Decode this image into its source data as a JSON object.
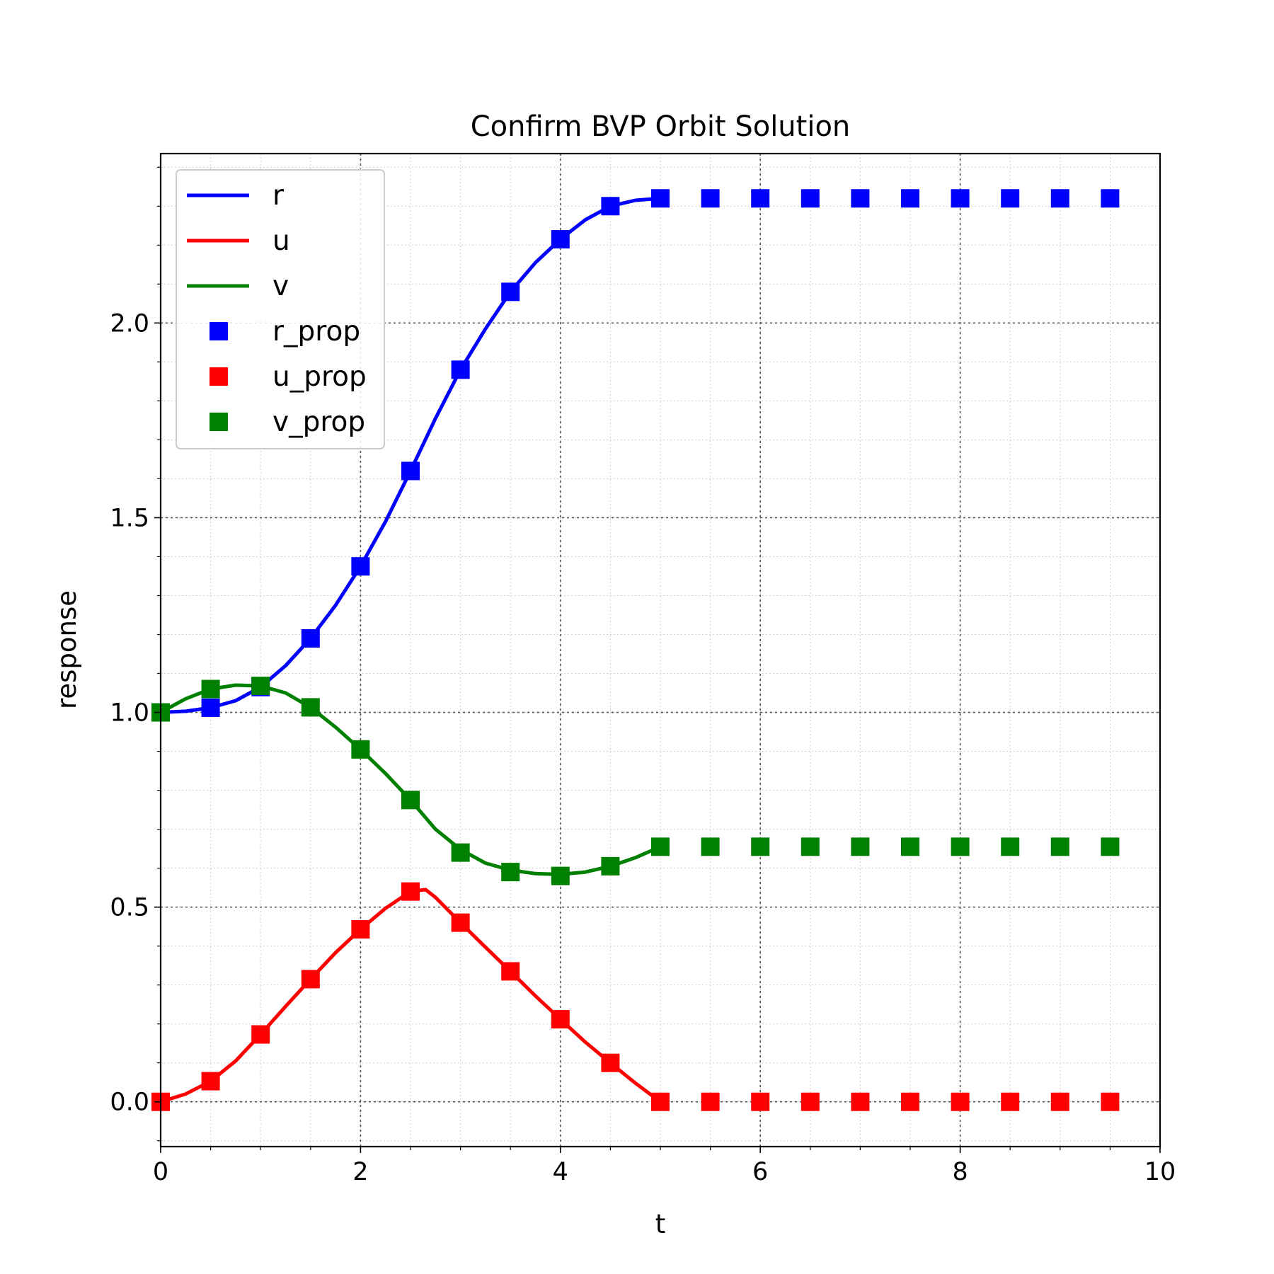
{
  "chart_data": {
    "type": "line",
    "title": "Confirm BVP Orbit Solution",
    "xlabel": "t",
    "ylabel": "response",
    "xlim": [
      0,
      10
    ],
    "ylim": [
      -0.115,
      2.435
    ],
    "xticks": [
      0,
      2,
      4,
      6,
      8,
      10
    ],
    "xtick_labels": [
      "0",
      "2",
      "4",
      "6",
      "8",
      "10"
    ],
    "yticks": [
      0.0,
      0.5,
      1.0,
      1.5,
      2.0
    ],
    "ytick_labels": [
      "0.0",
      "0.5",
      "1.0",
      "1.5",
      "2.0"
    ],
    "grid": true,
    "legend_position": "upper-left",
    "series": [
      {
        "name": "r",
        "kind": "line",
        "color": "#0000ff",
        "x": [
          0,
          0.25,
          0.5,
          0.75,
          1.0,
          1.25,
          1.5,
          1.75,
          2.0,
          2.25,
          2.5,
          2.75,
          3.0,
          3.25,
          3.5,
          3.75,
          4.0,
          4.25,
          4.5,
          4.75,
          5.0
        ],
        "y": [
          1.0,
          1.003,
          1.012,
          1.03,
          1.065,
          1.12,
          1.19,
          1.275,
          1.375,
          1.49,
          1.62,
          1.755,
          1.88,
          1.985,
          2.08,
          2.155,
          2.215,
          2.265,
          2.3,
          2.315,
          2.32
        ]
      },
      {
        "name": "u",
        "kind": "line",
        "color": "#ff0000",
        "x": [
          0,
          0.25,
          0.5,
          0.75,
          1.0,
          1.25,
          1.5,
          1.75,
          2.0,
          2.25,
          2.5,
          2.65,
          2.75,
          3.0,
          3.25,
          3.5,
          3.75,
          4.0,
          4.25,
          4.5,
          4.75,
          5.0
        ],
        "y": [
          0.0,
          0.02,
          0.053,
          0.105,
          0.173,
          0.245,
          0.315,
          0.383,
          0.443,
          0.497,
          0.54,
          0.545,
          0.525,
          0.46,
          0.397,
          0.335,
          0.272,
          0.212,
          0.153,
          0.1,
          0.048,
          0.0
        ]
      },
      {
        "name": "v",
        "kind": "line",
        "color": "#008000",
        "x": [
          0,
          0.25,
          0.5,
          0.75,
          1.0,
          1.25,
          1.5,
          1.75,
          2.0,
          2.25,
          2.5,
          2.65,
          2.75,
          3.0,
          3.25,
          3.5,
          3.75,
          4.0,
          4.25,
          4.5,
          4.75,
          5.0
        ],
        "y": [
          1.0,
          1.035,
          1.06,
          1.07,
          1.068,
          1.05,
          1.013,
          0.962,
          0.905,
          0.843,
          0.775,
          0.73,
          0.7,
          0.648,
          0.613,
          0.595,
          0.586,
          0.584,
          0.59,
          0.605,
          0.627,
          0.655
        ]
      },
      {
        "name": "r_prop",
        "kind": "markers",
        "color": "#0000ff",
        "x": [
          0.5,
          1.0,
          1.5,
          2.0,
          2.5,
          3.0,
          3.5,
          4.0,
          4.5,
          5.0,
          5.5,
          6.0,
          6.5,
          7.0,
          7.5,
          8.0,
          8.5,
          9.0,
          9.5
        ],
        "y": [
          1.012,
          1.065,
          1.19,
          1.375,
          1.62,
          1.88,
          2.08,
          2.215,
          2.3,
          2.32,
          2.32,
          2.32,
          2.32,
          2.32,
          2.32,
          2.32,
          2.32,
          2.32,
          2.32
        ]
      },
      {
        "name": "u_prop",
        "kind": "markers",
        "color": "#ff0000",
        "x": [
          0,
          0.5,
          1.0,
          1.5,
          2.0,
          2.5,
          3.0,
          3.5,
          4.0,
          4.5,
          5.0,
          5.5,
          6.0,
          6.5,
          7.0,
          7.5,
          8.0,
          8.5,
          9.0,
          9.5
        ],
        "y": [
          0.0,
          0.053,
          0.173,
          0.315,
          0.443,
          0.54,
          0.46,
          0.335,
          0.212,
          0.1,
          0.0,
          0.0,
          0.0,
          0.0,
          0.0,
          0.0,
          0.0,
          0.0,
          0.0,
          0.0
        ]
      },
      {
        "name": "v_prop",
        "kind": "markers",
        "color": "#008000",
        "x": [
          0,
          0.5,
          1.0,
          1.5,
          2.0,
          2.5,
          3.0,
          3.5,
          4.0,
          4.5,
          5.0,
          5.5,
          6.0,
          6.5,
          7.0,
          7.5,
          8.0,
          8.5,
          9.0,
          9.5
        ],
        "y": [
          1.0,
          1.06,
          1.068,
          1.013,
          0.905,
          0.775,
          0.64,
          0.59,
          0.58,
          0.605,
          0.655,
          0.655,
          0.655,
          0.655,
          0.655,
          0.655,
          0.655,
          0.655,
          0.655,
          0.655
        ]
      }
    ]
  }
}
